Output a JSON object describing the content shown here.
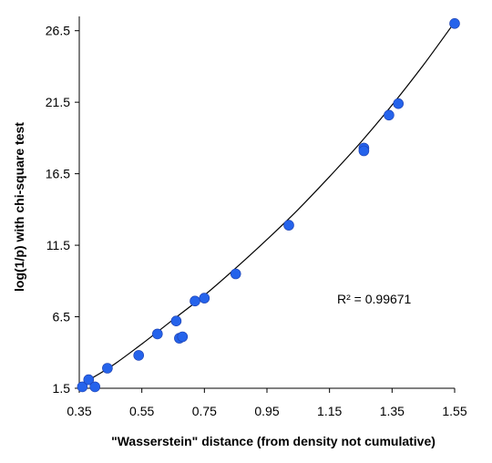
{
  "chart_data": {
    "type": "scatter",
    "title": "",
    "xlabel": "\"Wasserstein\" distance (from density not cumulative)",
    "ylabel": "log(1/p) with chi-square test",
    "xlim": [
      0.35,
      1.55
    ],
    "ylim": [
      1.5,
      27.5
    ],
    "x_ticks": [
      "0.35",
      "0.55",
      "0.75",
      "0.95",
      "1.15",
      "1.35",
      "1.55"
    ],
    "y_ticks": [
      "1.5",
      "6.5",
      "11.5",
      "16.5",
      "21.5",
      "26.5"
    ],
    "grid": false,
    "legend": "none",
    "marker_color": "#2563eb",
    "trendline": {
      "type": "polynomial",
      "color": "#000000",
      "r_squared_label": "R² = 0.99671",
      "points": [
        [
          0.35,
          1.7
        ],
        [
          0.45,
          3.0
        ],
        [
          0.55,
          4.6
        ],
        [
          0.65,
          6.3
        ],
        [
          0.75,
          8.0
        ],
        [
          0.85,
          9.9
        ],
        [
          0.95,
          11.9
        ],
        [
          1.05,
          14.0
        ],
        [
          1.15,
          16.3
        ],
        [
          1.25,
          18.7
        ],
        [
          1.35,
          21.3
        ],
        [
          1.45,
          24.1
        ],
        [
          1.55,
          27.1
        ]
      ]
    },
    "series": [
      {
        "points": [
          [
            0.36,
            1.6
          ],
          [
            0.38,
            2.1
          ],
          [
            0.4,
            1.6
          ],
          [
            0.44,
            2.9
          ],
          [
            0.54,
            3.8
          ],
          [
            0.6,
            5.3
          ],
          [
            0.66,
            6.2
          ],
          [
            0.67,
            5.0
          ],
          [
            0.68,
            5.1
          ],
          [
            0.72,
            7.6
          ],
          [
            0.75,
            7.8
          ],
          [
            0.85,
            9.5
          ],
          [
            1.02,
            12.9
          ],
          [
            1.26,
            18.3
          ],
          [
            1.26,
            18.1
          ],
          [
            1.34,
            20.6
          ],
          [
            1.37,
            21.4
          ],
          [
            1.55,
            27.0
          ]
        ]
      }
    ]
  }
}
